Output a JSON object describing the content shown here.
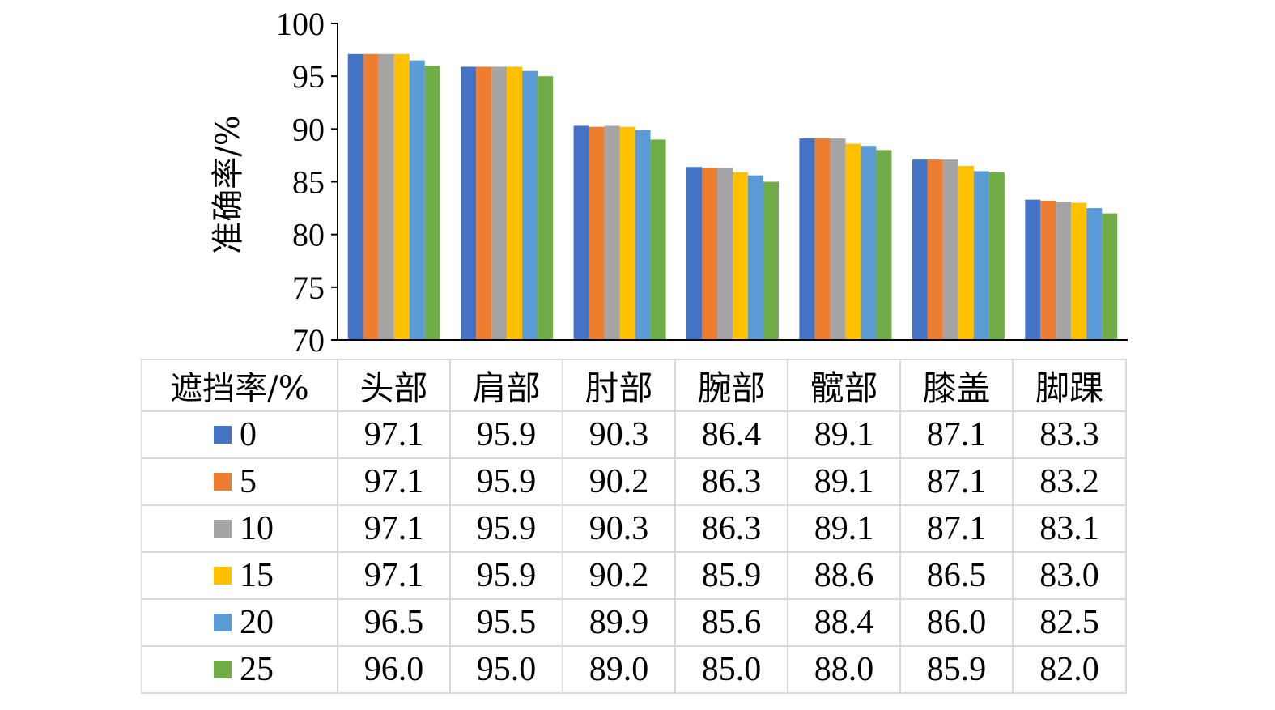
{
  "chart_data": {
    "type": "bar",
    "title": "",
    "xlabel": "",
    "ylabel": "准确率/%",
    "ylim": [
      70,
      100
    ],
    "yticks": [
      70,
      75,
      80,
      85,
      90,
      95,
      100
    ],
    "categories": [
      "头部",
      "肩部",
      "肘部",
      "腕部",
      "髋部",
      "膝盖",
      "脚踝"
    ],
    "legend_header": "遮挡率/%",
    "legend_placement": "data-table below chart",
    "grid": false,
    "series": [
      {
        "name": "0",
        "color": "#4472c4",
        "values": [
          97.1,
          95.9,
          90.3,
          86.4,
          89.1,
          87.1,
          83.3
        ],
        "labels": [
          "97.1",
          "95.9",
          "90.3",
          "86.4",
          "89.1",
          "87.1",
          "83.3"
        ]
      },
      {
        "name": "5",
        "color": "#ed7d31",
        "values": [
          97.1,
          95.9,
          90.2,
          86.3,
          89.1,
          87.1,
          83.2
        ],
        "labels": [
          "97.1",
          "95.9",
          "90.2",
          "86.3",
          "89.1",
          "87.1",
          "83.2"
        ]
      },
      {
        "name": "10",
        "color": "#a5a5a5",
        "values": [
          97.1,
          95.9,
          90.3,
          86.3,
          89.1,
          87.1,
          83.1
        ],
        "labels": [
          "97.1",
          "95.9",
          "90.3",
          "86.3",
          "89.1",
          "87.1",
          "83.1"
        ]
      },
      {
        "name": "15",
        "color": "#ffc000",
        "values": [
          97.1,
          95.9,
          90.2,
          85.9,
          88.6,
          86.5,
          83.0
        ],
        "labels": [
          "97.1",
          "95.9",
          "90.2",
          "85.9",
          "88.6",
          "86.5",
          "83.0"
        ]
      },
      {
        "name": "20",
        "color": "#5b9bd5",
        "values": [
          96.5,
          95.5,
          89.9,
          85.6,
          88.4,
          86.0,
          82.5
        ],
        "labels": [
          "96.5",
          "95.5",
          "89.9",
          "85.6",
          "88.4",
          "86.0",
          "82.5"
        ]
      },
      {
        "name": "25",
        "color": "#70ad47",
        "values": [
          96.0,
          95.0,
          89.0,
          85.0,
          88.0,
          85.9,
          82.0
        ],
        "labels": [
          "96.0",
          "95.0",
          "89.0",
          "85.0",
          "88.0",
          "85.9",
          "82.0"
        ]
      }
    ]
  }
}
